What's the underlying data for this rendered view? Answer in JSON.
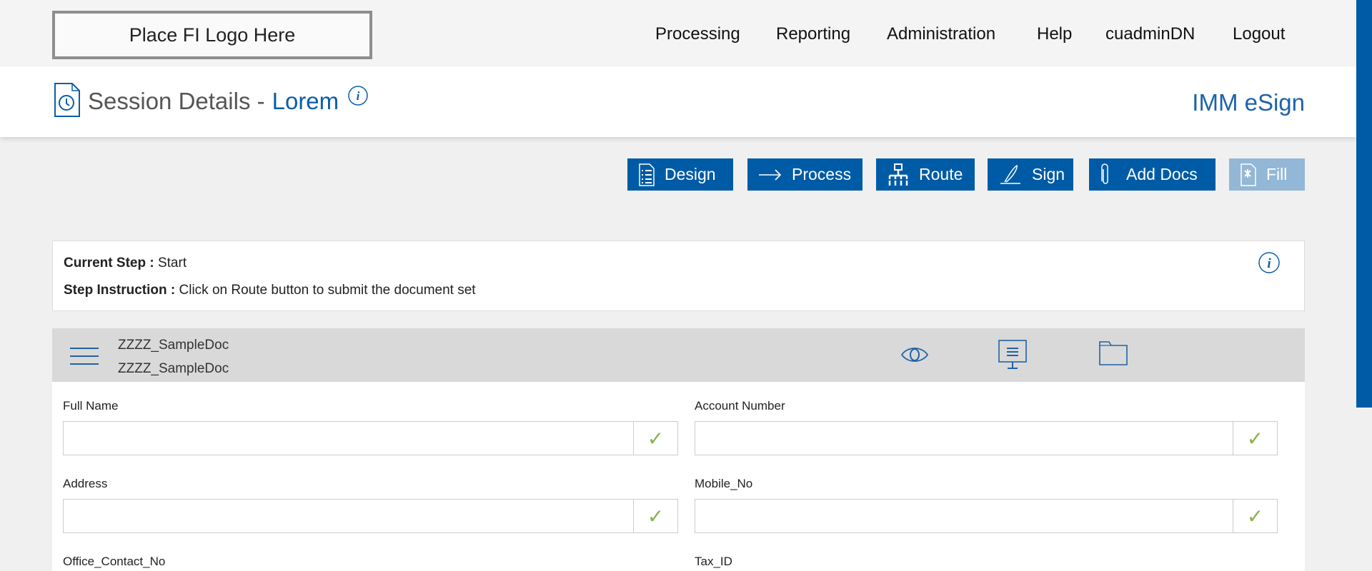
{
  "topbar": {
    "logo_text": "Place FI Logo Here",
    "nav": [
      "Processing",
      "Reporting",
      "Administration",
      "Help",
      "cuadminDN",
      "Logout"
    ]
  },
  "header": {
    "title": "Session Details -",
    "session_name": "Lorem",
    "brand": "IMM eSign"
  },
  "toolbar": {
    "buttons": [
      {
        "label": "Design",
        "icon": "checklist-document-icon",
        "enabled": true
      },
      {
        "label": "Process",
        "icon": "arrow-right-icon",
        "enabled": true
      },
      {
        "label": "Route",
        "icon": "network-icon",
        "enabled": true
      },
      {
        "label": "Sign",
        "icon": "pen-icon",
        "enabled": true
      },
      {
        "label": "Add Docs",
        "icon": "paperclip-icon",
        "enabled": true
      },
      {
        "label": "Fill",
        "icon": "document-wrench-icon",
        "enabled": false
      }
    ]
  },
  "step": {
    "current_label": "Current Step :",
    "current_value": "Start",
    "instruction_label": "Step Instruction :",
    "instruction_value": "Click on Route button to submit the document set"
  },
  "document": {
    "name1": "ZZZZ_SampleDoc",
    "name2": "ZZZZ_SampleDoc"
  },
  "form": {
    "fields": [
      {
        "label": "Full Name",
        "value": ""
      },
      {
        "label": "Account Number",
        "value": ""
      },
      {
        "label": "Address",
        "value": ""
      },
      {
        "label": "Mobile_No",
        "value": ""
      },
      {
        "label": "Office_Contact_No",
        "value": ""
      },
      {
        "label": "Tax_ID",
        "value": ""
      }
    ],
    "check_glyph": "✓"
  },
  "colors": {
    "primary": "#005ba6",
    "disabled": "#93b7d6",
    "check": "#8bb04a"
  }
}
